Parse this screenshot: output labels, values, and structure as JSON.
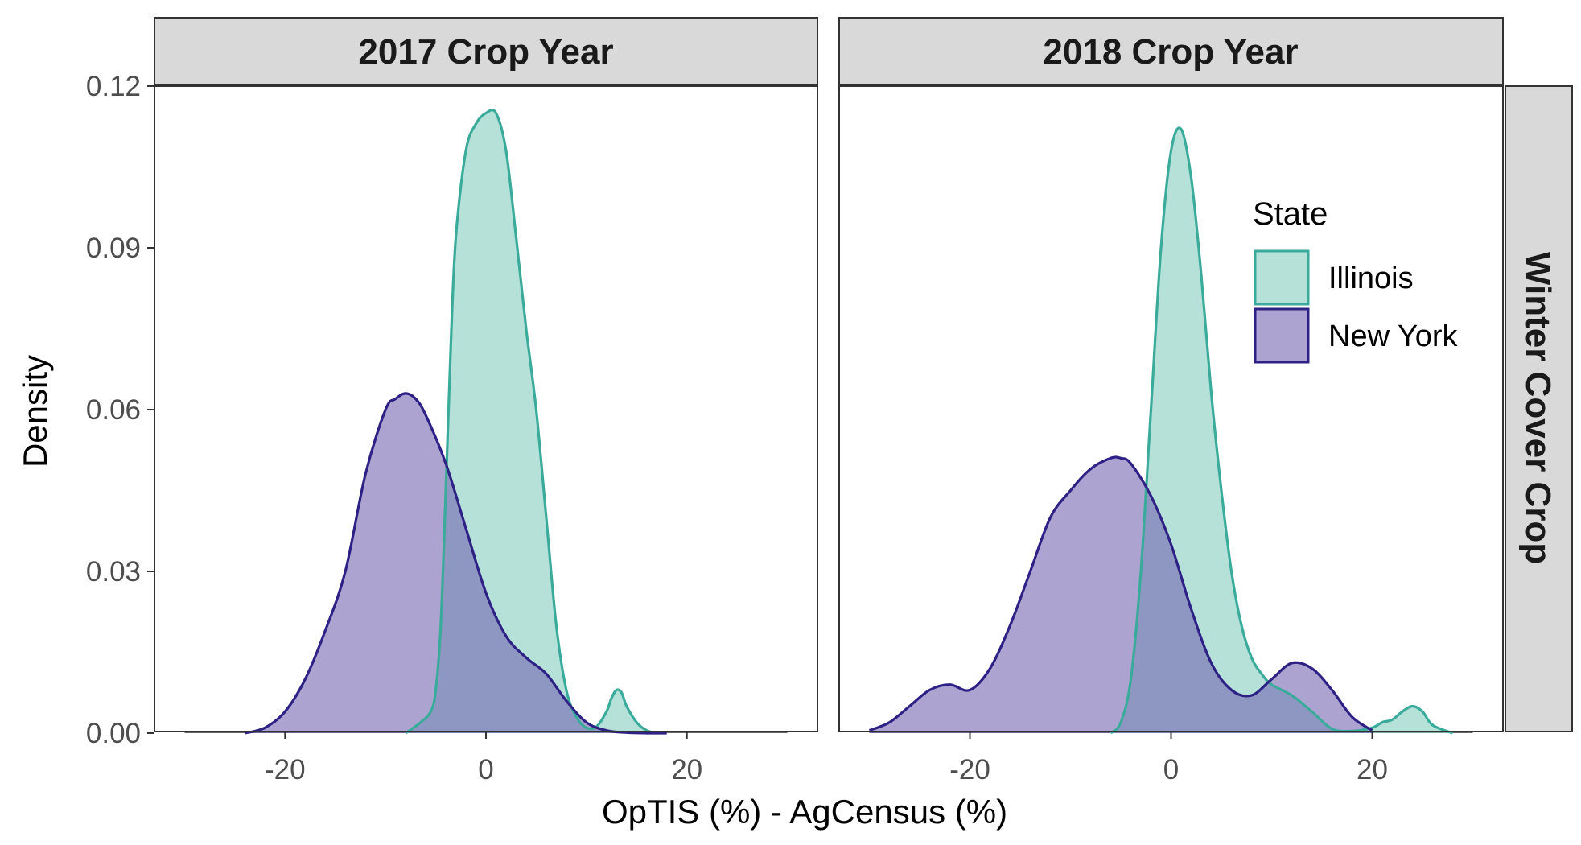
{
  "chart_data": {
    "type": "area",
    "ylabel": "Density",
    "xlabel": "OpTIS (%) - AgCensus (%)",
    "row_strip": "Winter Cover Crop",
    "xlim": [
      -33,
      33
    ],
    "ylim": [
      0,
      0.12
    ],
    "x_ticks": [
      -20,
      0,
      20
    ],
    "y_ticks": [
      0,
      0.03,
      0.06,
      0.09,
      0.12
    ],
    "y_tick_labels": [
      "0.00",
      "0.03",
      "0.06",
      "0.09",
      "0.12"
    ],
    "x_tick_labels": [
      "-20",
      "0",
      "20"
    ],
    "grid": false,
    "legend": {
      "title": "State",
      "placement": "inside-top-right of right panel",
      "entries": [
        {
          "label": "Illinois",
          "color": "#3aab9a"
        },
        {
          "label": "New York",
          "color": "#2e2185"
        }
      ]
    },
    "colors": {
      "Illinois_line": "#3aab9a",
      "Illinois_fill": "#8ed1c4",
      "New York_line": "#2e2185",
      "New York_fill": "#7466b3"
    },
    "panels": [
      {
        "title": "2017 Crop Year",
        "series": [
          {
            "name": "Illinois",
            "x": [
              -8,
              -6.5,
              -5.5,
              -5,
              -4.5,
              -4,
              -3.5,
              -3,
              -2,
              -1,
              0,
              1,
              2,
              3,
              4,
              5,
              6,
              7,
              8,
              9,
              10,
              11,
              12,
              12.5,
              13,
              13.5,
              14,
              15,
              16,
              17
            ],
            "y": [
              0,
              0.002,
              0.004,
              0.008,
              0.02,
              0.045,
              0.072,
              0.092,
              0.108,
              0.113,
              0.115,
              0.115,
              0.108,
              0.092,
              0.075,
              0.06,
              0.04,
              0.02,
              0.008,
              0.003,
              0.001,
              0.0012,
              0.004,
              0.0065,
              0.008,
              0.0075,
              0.005,
              0.002,
              0.0005,
              0
            ]
          },
          {
            "name": "New York",
            "x": [
              -24,
              -22,
              -20,
              -18,
              -16,
              -14,
              -12,
              -10,
              -9,
              -8,
              -7,
              -6,
              -4,
              -2,
              0,
              2,
              4,
              6,
              8,
              10,
              12,
              14,
              16,
              18
            ],
            "y": [
              0,
              0.001,
              0.004,
              0.01,
              0.019,
              0.03,
              0.048,
              0.06,
              0.062,
              0.063,
              0.062,
              0.059,
              0.05,
              0.038,
              0.026,
              0.018,
              0.014,
              0.011,
              0.006,
              0.002,
              0.0005,
              0.0001,
              0,
              0
            ]
          }
        ]
      },
      {
        "title": "2018 Crop Year",
        "series": [
          {
            "name": "Illinois",
            "x": [
              -6,
              -5,
              -4,
              -3,
              -2,
              -1,
              0,
              1,
              2,
              3,
              4,
              5,
              6,
              7,
              8,
              9,
              10,
              12,
              14,
              16,
              18,
              20,
              21,
              22,
              23,
              24,
              25,
              26,
              28
            ],
            "y": [
              0,
              0.002,
              0.01,
              0.03,
              0.06,
              0.09,
              0.108,
              0.112,
              0.103,
              0.085,
              0.063,
              0.045,
              0.03,
              0.02,
              0.014,
              0.011,
              0.009,
              0.007,
              0.004,
              0.0008,
              0.0004,
              0.001,
              0.002,
              0.0025,
              0.004,
              0.005,
              0.004,
              0.0015,
              0
            ]
          },
          {
            "name": "New York",
            "x": [
              -30,
              -28,
              -26,
              -24,
              -22,
              -20,
              -18,
              -16,
              -14,
              -12,
              -10,
              -8,
              -6,
              -5,
              -4,
              -2,
              0,
              2,
              4,
              6,
              8,
              10,
              12,
              14,
              16,
              18,
              20
            ],
            "y": [
              0.0005,
              0.002,
              0.005,
              0.008,
              0.009,
              0.008,
              0.012,
              0.02,
              0.03,
              0.04,
              0.045,
              0.049,
              0.051,
              0.051,
              0.05,
              0.044,
              0.035,
              0.023,
              0.013,
              0.008,
              0.007,
              0.01,
              0.013,
              0.012,
              0.008,
              0.003,
              0.0005
            ]
          }
        ]
      }
    ]
  }
}
